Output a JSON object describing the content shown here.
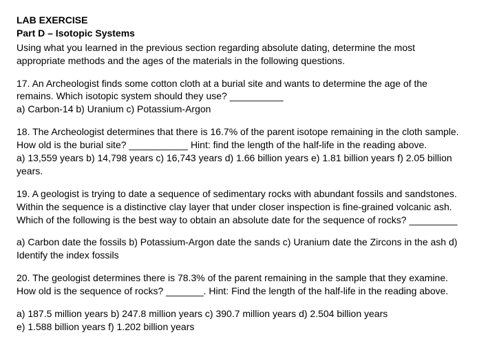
{
  "heading": "LAB EXERCISE",
  "subheading": "Part D – Isotopic Systems",
  "intro": "Using what you learned in the previous section regarding absolute dating, determine the most appropriate methods and the ages of the materials in the following questions.",
  "q17": {
    "text": "17. An Archeologist finds some cotton cloth at a burial site and wants to determine the age of the remains. Which isotopic system should they use? __________",
    "options": "a) Carbon-14 b) Uranium c) Potassium-Argon"
  },
  "q18": {
    "text": "18. The Archeologist determines that there is 16.7% of the parent isotope remaining in the cloth sample. How old is the burial site? ___________ Hint: find the length of the half-life in the reading above.",
    "options": "a) 13,559 years b) 14,798 years c) 16,743 years d) 1.66 billion years e) 1.81 billion years f) 2.05 billion years."
  },
  "q19": {
    "text": "19. A geologist is trying to date a sequence of sedimentary rocks with abundant fossils and sandstones. Within the sequence is a distinctive clay layer that under closer inspection is fine-grained volcanic ash. Which of the following is the best way to obtain an absolute date for the sequence of rocks? _________",
    "options": "a) Carbon date the fossils  b) Potassium-Argon date the sands  c) Uranium date the Zircons in the ash  d) Identify the index fossils"
  },
  "q20": {
    "text": "20. The geologist determines there is 78.3% of the parent remaining in the sample that they examine. How old is the sequence of rocks? _______. Hint: Find the length of the half-life in the reading above.",
    "options_line1": "a) 187.5 million years   b) 247.8 million years   c) 390.7 million years   d) 2.504 billion years",
    "options_line2": "e) 1.588 billion years    f) 1.202 billion years"
  }
}
